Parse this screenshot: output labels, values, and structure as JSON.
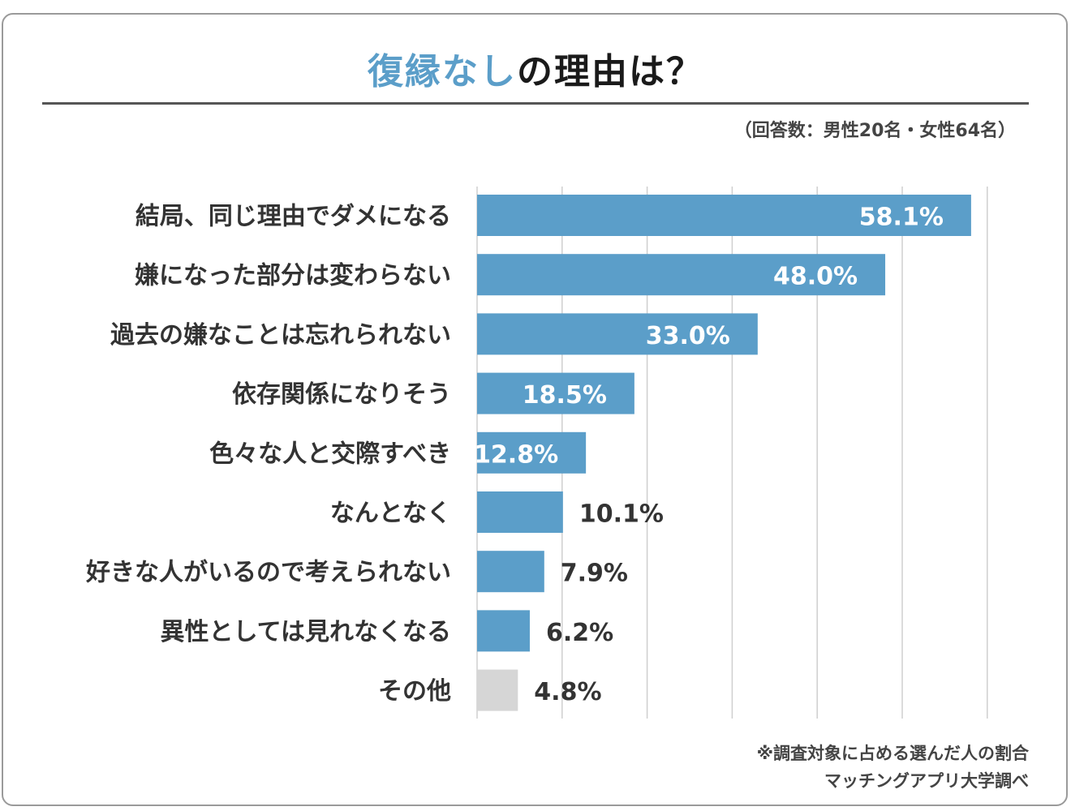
{
  "title": {
    "accent": "復縁なし",
    "rest": "の理由は？"
  },
  "sample_note": "（回答数：男性20名・女性64名）",
  "footnotes": {
    "line1": "※調査対象に占める選んだ人の割合",
    "line2": "マッチングアプリ大学調べ"
  },
  "colors": {
    "bar": "#5b9ec9",
    "other_bar": "#d6d6d6",
    "grid": "#cfcfcf",
    "label": "#333333"
  },
  "chart_data": {
    "type": "bar",
    "orientation": "horizontal",
    "title": "復縁なしの理由は？",
    "unit": "%",
    "xlim": [
      0,
      60
    ],
    "grid": true,
    "categories": [
      "結局、同じ理由でダメになる",
      "嫌になった部分は変わらない",
      "過去の嫌なことは忘れられない",
      "依存関係になりそう",
      "色々な人と交際すべき",
      "なんとなく",
      "好きな人がいるので考えられない",
      "異性としては見れなくなる",
      "その他"
    ],
    "values": [
      58.1,
      48.0,
      33.0,
      18.5,
      12.8,
      10.1,
      7.9,
      6.2,
      4.8
    ],
    "value_labels": [
      "58.1%",
      "48.0%",
      "33.0%",
      "18.5%",
      "12.8%",
      "10.1%",
      "7.9%",
      "6.2%",
      "4.8%"
    ]
  }
}
